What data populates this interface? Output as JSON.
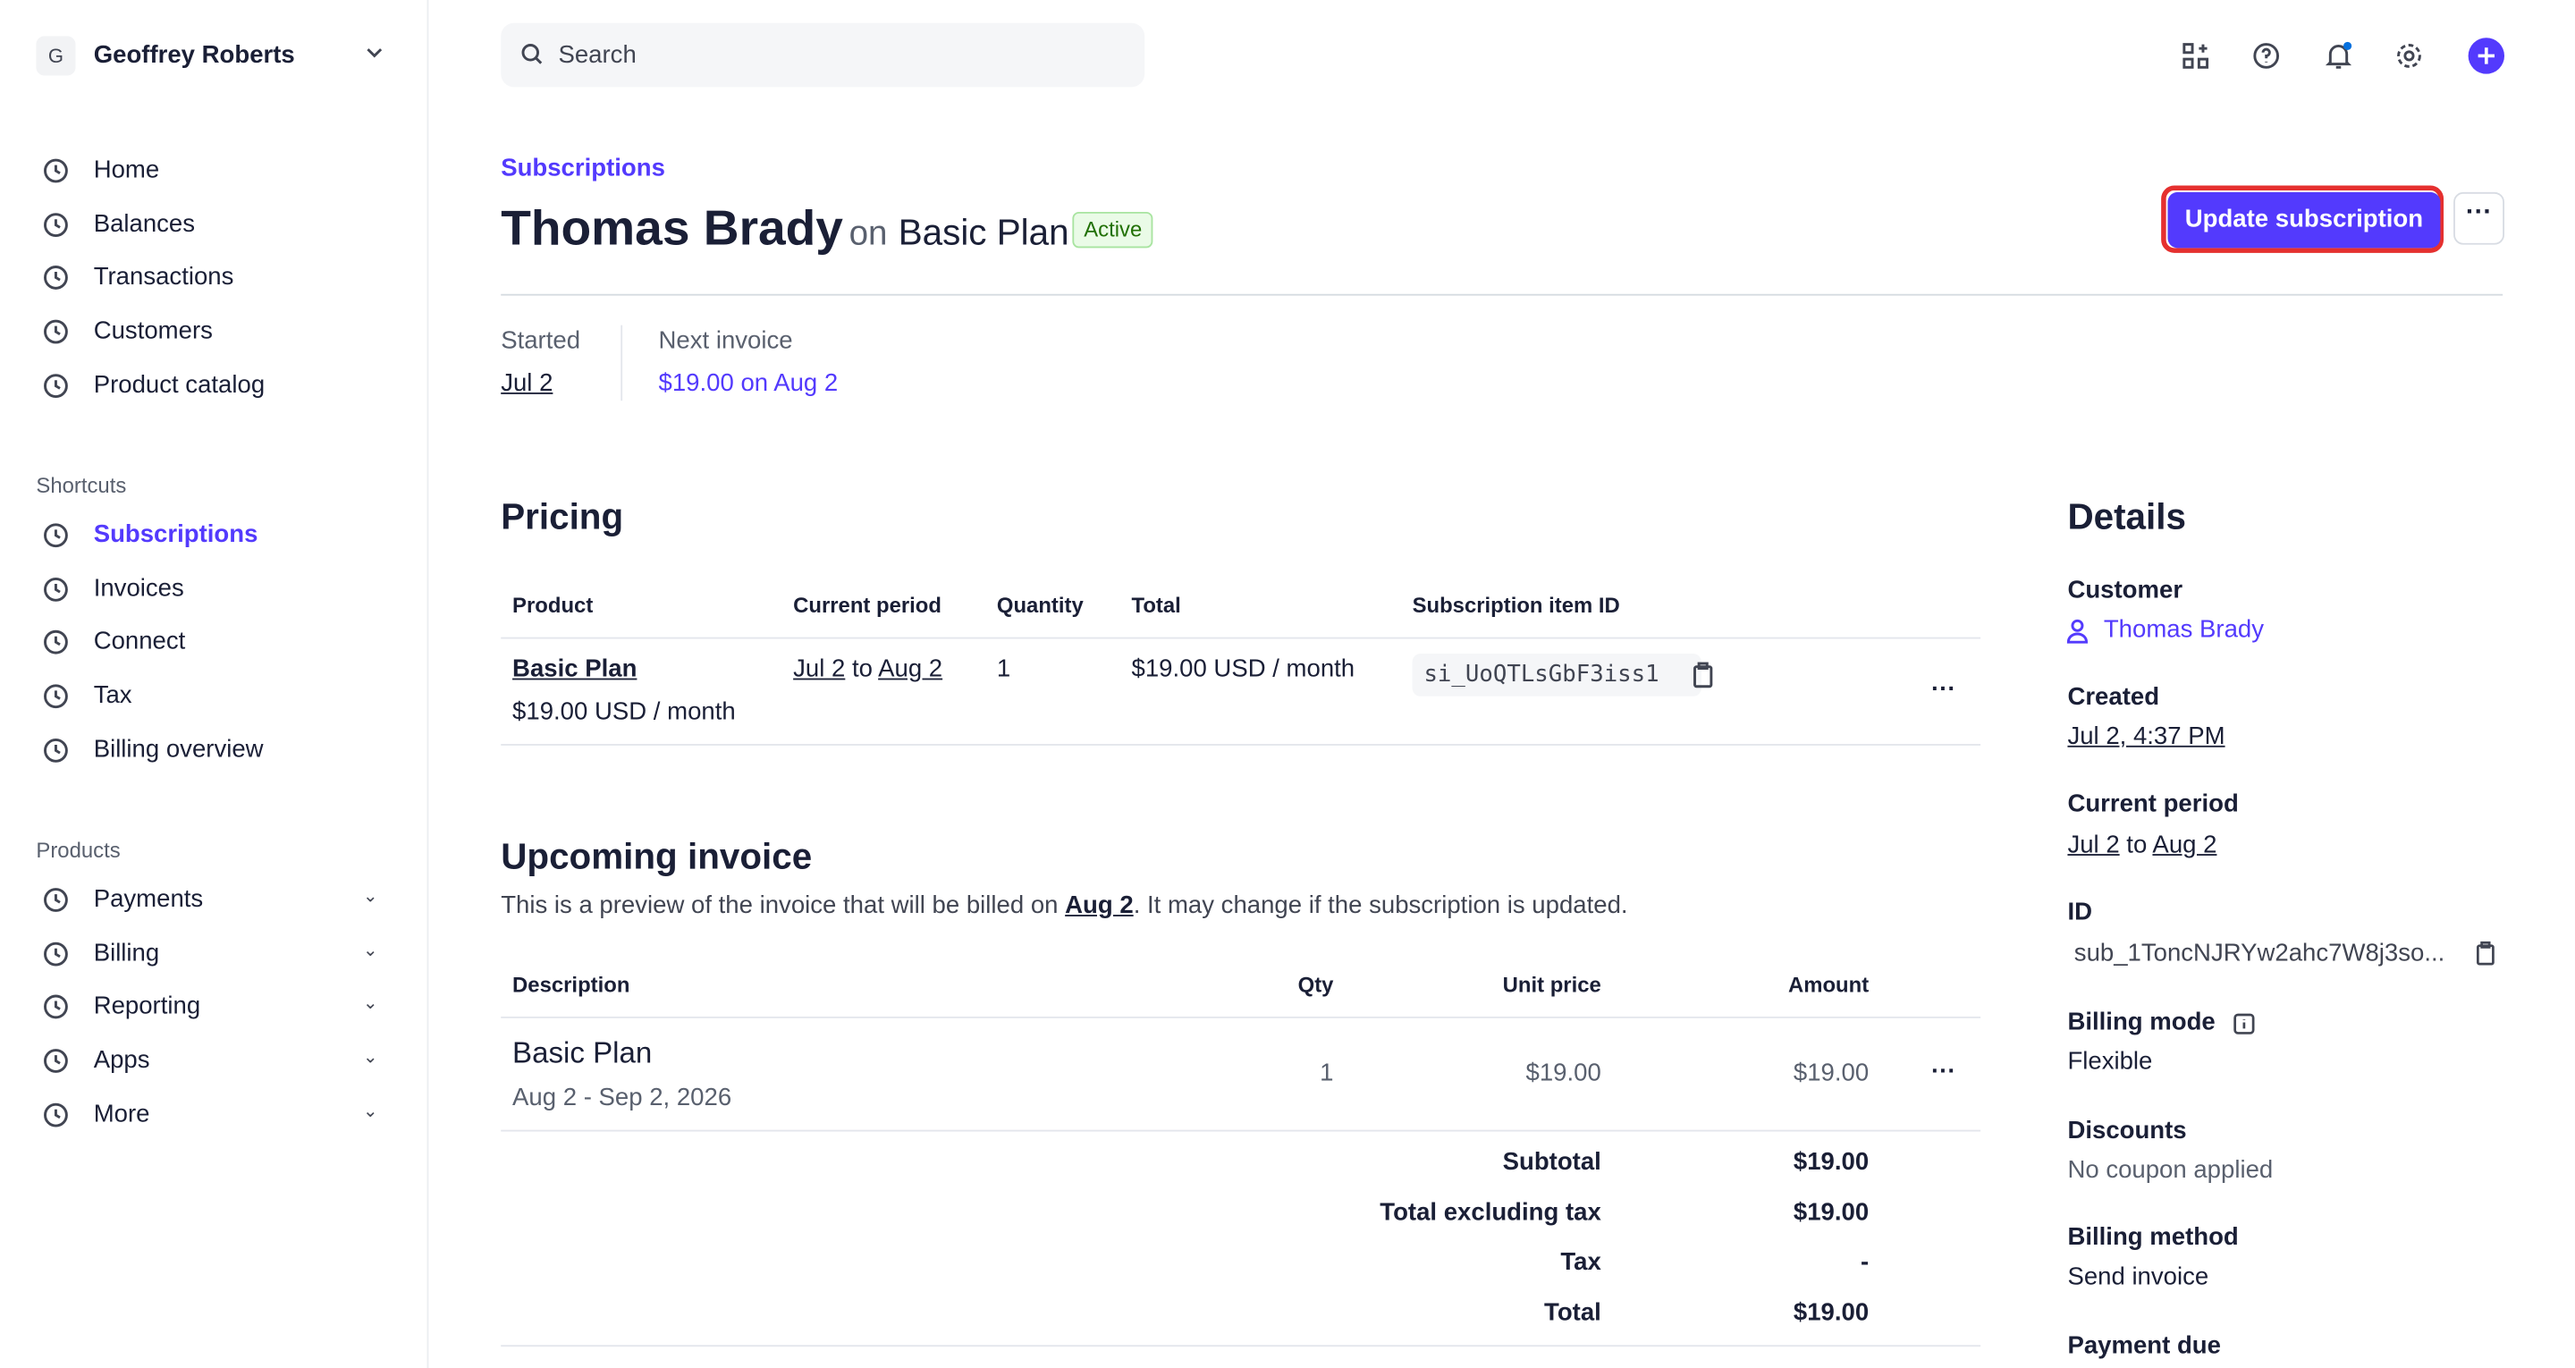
{
  "sidebar": {
    "account_initial": "G",
    "account": "Geoffrey Roberts",
    "nav": [
      "Home",
      "Balances",
      "Transactions",
      "Customers",
      "Product catalog"
    ],
    "shortcuts_title": "Shortcuts",
    "shortcuts": [
      "Subscriptions",
      "Invoices",
      "Connect",
      "Tax",
      "Billing overview"
    ],
    "products_title": "Products",
    "products": [
      "Payments",
      "Billing",
      "Reporting",
      "Apps",
      "More"
    ]
  },
  "topbar": {
    "search_placeholder": "Search"
  },
  "header": {
    "breadcrumb": "Subscriptions",
    "customer": "Thomas Brady",
    "on": "on",
    "plan": "Basic Plan",
    "status": "Active",
    "primary_button": "Update subscription"
  },
  "summary": [
    {
      "label": "Started",
      "value": "Jul 2"
    },
    {
      "label": "Next invoice",
      "value": "$19.00 on Aug 2"
    }
  ],
  "pricing": {
    "title": "Pricing",
    "columns": [
      "Product",
      "Current period",
      "Quantity",
      "Total",
      "Subscription item ID"
    ],
    "rows": [
      {
        "product": "Basic Plan",
        "price": "$19.00 USD / month",
        "period_start": "Jul 2",
        "period_to": "to",
        "period_end": "Aug 2",
        "quantity": "1",
        "total": "$19.00 USD / month",
        "item_id": "si_UoQTLsGbF3iss1"
      }
    ]
  },
  "upcoming": {
    "title": "Upcoming invoice",
    "note_before": "This is a preview of the invoice that will be billed on",
    "note_date": "Aug 2",
    "note_after": ". It may change if the subscription is updated.",
    "columns": [
      "Description",
      "Qty",
      "Unit price",
      "Amount"
    ],
    "rows": [
      {
        "description": "Basic Plan",
        "dates": "Aug 2 - Sep 2, 2026",
        "qty": "1",
        "unit_price": "$19.00",
        "amount": "$19.00"
      }
    ],
    "totals": [
      {
        "label": "Subtotal",
        "value": "$19.00"
      },
      {
        "label": "Total excluding tax",
        "value": "$19.00"
      },
      {
        "label": "Tax",
        "value": "-"
      },
      {
        "label": "Total",
        "value": "$19.00"
      }
    ]
  },
  "details": {
    "title": "Details",
    "customer_label": "Customer",
    "customer": "Thomas Brady",
    "created_label": "Created",
    "created": "Jul 2, 4:37 PM",
    "period_label": "Current period",
    "period_start": "Jul 2",
    "period_to": "to",
    "period_end": "Aug 2",
    "id_label": "ID",
    "id": "sub_1ToncNJRYw2ahc7W8j3so...",
    "billing_mode_label": "Billing mode",
    "billing_mode": "Flexible",
    "discounts_label": "Discounts",
    "discounts": "No coupon applied",
    "billing_method_label": "Billing method",
    "billing_method": "Send invoice",
    "payment_due_label": "Payment due"
  }
}
